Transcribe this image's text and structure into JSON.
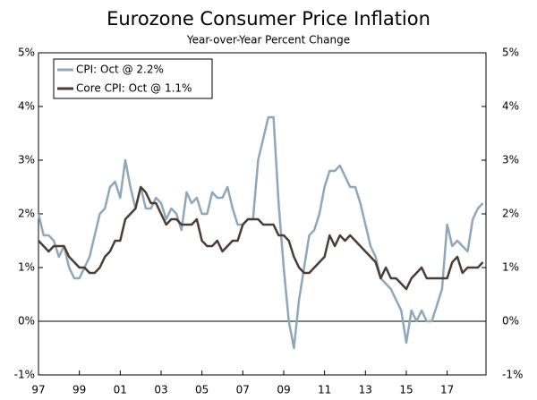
{
  "chart_data": {
    "type": "line",
    "title": "Eurozone Consumer Price Inflation",
    "subtitle": "Year-over-Year Percent Change",
    "x": [
      1997,
      1997.25,
      1997.5,
      1997.75,
      1998,
      1998.25,
      1998.5,
      1998.75,
      1999,
      1999.25,
      1999.5,
      1999.75,
      2000,
      2000.25,
      2000.5,
      2000.75,
      2001,
      2001.25,
      2001.5,
      2001.75,
      2002,
      2002.25,
      2002.5,
      2002.75,
      2003,
      2003.25,
      2003.5,
      2003.75,
      2004,
      2004.25,
      2004.5,
      2004.75,
      2005,
      2005.25,
      2005.5,
      2005.75,
      2006,
      2006.25,
      2006.5,
      2006.75,
      2007,
      2007.25,
      2007.5,
      2007.75,
      2008,
      2008.25,
      2008.5,
      2008.75,
      2009,
      2009.25,
      2009.5,
      2009.75,
      2010,
      2010.25,
      2010.5,
      2010.75,
      2011,
      2011.25,
      2011.5,
      2011.75,
      2012,
      2012.25,
      2012.5,
      2012.75,
      2013,
      2013.25,
      2013.5,
      2013.75,
      2014,
      2014.25,
      2014.5,
      2014.75,
      2015,
      2015.25,
      2015.5,
      2015.75,
      2016,
      2016.25,
      2016.5,
      2016.75,
      2017,
      2017.25,
      2017.5,
      2017.75,
      2018,
      2018.25,
      2018.5,
      2018.75
    ],
    "series": [
      {
        "name": "CPI: Oct @ 2.2%",
        "color": "#8fa7b9",
        "values": [
          2.0,
          1.6,
          1.6,
          1.5,
          1.2,
          1.4,
          1.0,
          0.8,
          0.8,
          1.0,
          1.2,
          1.6,
          2.0,
          2.1,
          2.5,
          2.6,
          2.3,
          3.0,
          2.5,
          2.1,
          2.5,
          2.1,
          2.1,
          2.3,
          2.2,
          1.9,
          2.1,
          2.0,
          1.7,
          2.4,
          2.2,
          2.3,
          2.0,
          2.0,
          2.4,
          2.3,
          2.3,
          2.5,
          2.1,
          1.8,
          1.8,
          1.9,
          1.9,
          3.0,
          3.4,
          3.8,
          3.8,
          2.2,
          1.0,
          0.0,
          -0.5,
          0.4,
          1.0,
          1.6,
          1.7,
          2.0,
          2.5,
          2.8,
          2.8,
          2.9,
          2.7,
          2.5,
          2.5,
          2.2,
          1.8,
          1.4,
          1.2,
          0.8,
          0.7,
          0.6,
          0.4,
          0.2,
          -0.4,
          0.2,
          0.0,
          0.2,
          0.0,
          0.0,
          0.3,
          0.6,
          1.8,
          1.4,
          1.5,
          1.4,
          1.3,
          1.9,
          2.1,
          2.2
        ]
      },
      {
        "name": "Core CPI: Oct @ 1.1%",
        "color": "#4b3d33",
        "values": [
          1.5,
          1.4,
          1.3,
          1.4,
          1.4,
          1.4,
          1.2,
          1.1,
          1.0,
          1.0,
          0.9,
          0.9,
          1.0,
          1.2,
          1.3,
          1.5,
          1.5,
          1.9,
          2.0,
          2.1,
          2.5,
          2.4,
          2.2,
          2.2,
          2.0,
          1.8,
          1.9,
          1.9,
          1.8,
          1.8,
          1.8,
          1.9,
          1.5,
          1.4,
          1.4,
          1.5,
          1.3,
          1.4,
          1.5,
          1.5,
          1.8,
          1.9,
          1.9,
          1.9,
          1.8,
          1.8,
          1.8,
          1.6,
          1.6,
          1.5,
          1.2,
          1.0,
          0.9,
          0.9,
          1.0,
          1.1,
          1.2,
          1.6,
          1.4,
          1.6,
          1.5,
          1.6,
          1.5,
          1.4,
          1.3,
          1.2,
          1.1,
          0.8,
          1.0,
          0.8,
          0.8,
          0.7,
          0.6,
          0.8,
          0.9,
          1.0,
          0.8,
          0.8,
          0.8,
          0.8,
          0.8,
          1.1,
          1.2,
          0.9,
          1.0,
          1.0,
          1.0,
          1.1
        ]
      }
    ],
    "xlim": [
      1997,
      2018.9
    ],
    "xticks": [
      {
        "value": 1997,
        "label": "97"
      },
      {
        "value": 1999,
        "label": "99"
      },
      {
        "value": 2001,
        "label": "01"
      },
      {
        "value": 2003,
        "label": "03"
      },
      {
        "value": 2005,
        "label": "05"
      },
      {
        "value": 2007,
        "label": "07"
      },
      {
        "value": 2009,
        "label": "09"
      },
      {
        "value": 2011,
        "label": "11"
      },
      {
        "value": 2013,
        "label": "13"
      },
      {
        "value": 2015,
        "label": "15"
      },
      {
        "value": 2017,
        "label": "17"
      }
    ],
    "ylim": [
      -1,
      5
    ],
    "yticks": [
      {
        "value": -1,
        "label": "-1%"
      },
      {
        "value": 0,
        "label": "0%"
      },
      {
        "value": 1,
        "label": "1%"
      },
      {
        "value": 2,
        "label": "2%"
      },
      {
        "value": 3,
        "label": "3%"
      },
      {
        "value": 4,
        "label": "4%"
      },
      {
        "value": 5,
        "label": "5%"
      }
    ],
    "y2lim": [
      -1,
      5
    ],
    "y2ticks": [
      {
        "value": -1,
        "label": "-1%"
      },
      {
        "value": 0,
        "label": "0%"
      },
      {
        "value": 1,
        "label": "1%"
      },
      {
        "value": 2,
        "label": "2%"
      },
      {
        "value": 3,
        "label": "3%"
      },
      {
        "value": 4,
        "label": "4%"
      },
      {
        "value": 5,
        "label": "5%"
      }
    ],
    "legend": "upper left"
  }
}
